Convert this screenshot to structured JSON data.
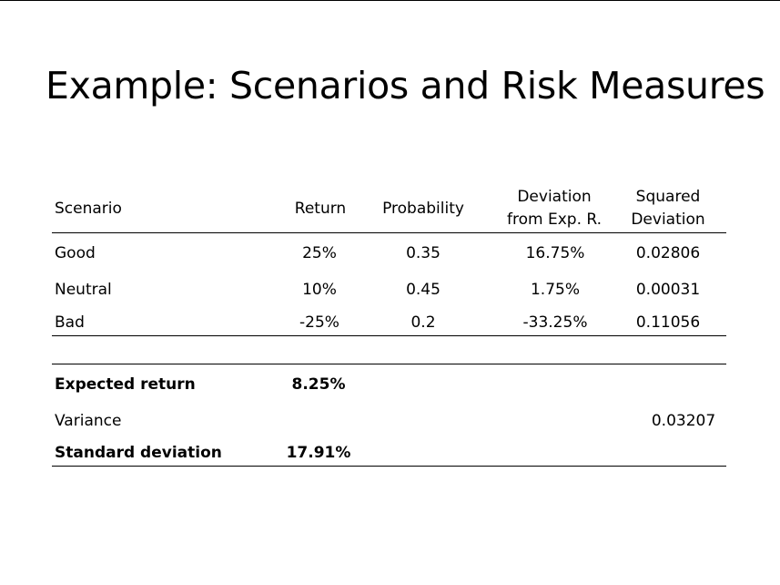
{
  "slide": {
    "title": "Example: Scenarios and Risk Measures"
  },
  "table": {
    "headers": {
      "scenario": "Scenario",
      "return": "Return",
      "probability": "Probability",
      "deviation_line1": "Deviation",
      "deviation_line2": "from Exp. R.",
      "squared_line1": "Squared",
      "squared_line2": "Deviation"
    },
    "rows": [
      {
        "scenario": "Good",
        "return": "25%",
        "probability": "0.35",
        "deviation": "16.75%",
        "squared": "0.02806"
      },
      {
        "scenario": "Neutral",
        "return": "10%",
        "probability": "0.45",
        "deviation": "1.75%",
        "squared": "0.00031"
      },
      {
        "scenario": "Bad",
        "return": "-25%",
        "probability": "0.2",
        "deviation": "-33.25%",
        "squared": "0.11056"
      }
    ],
    "summary": {
      "expected_return_label": "Expected return",
      "expected_return_value": "8.25%",
      "variance_label": "Variance",
      "variance_value": "0.03207",
      "std_dev_label": "Standard deviation",
      "std_dev_value": "17.91%"
    }
  }
}
